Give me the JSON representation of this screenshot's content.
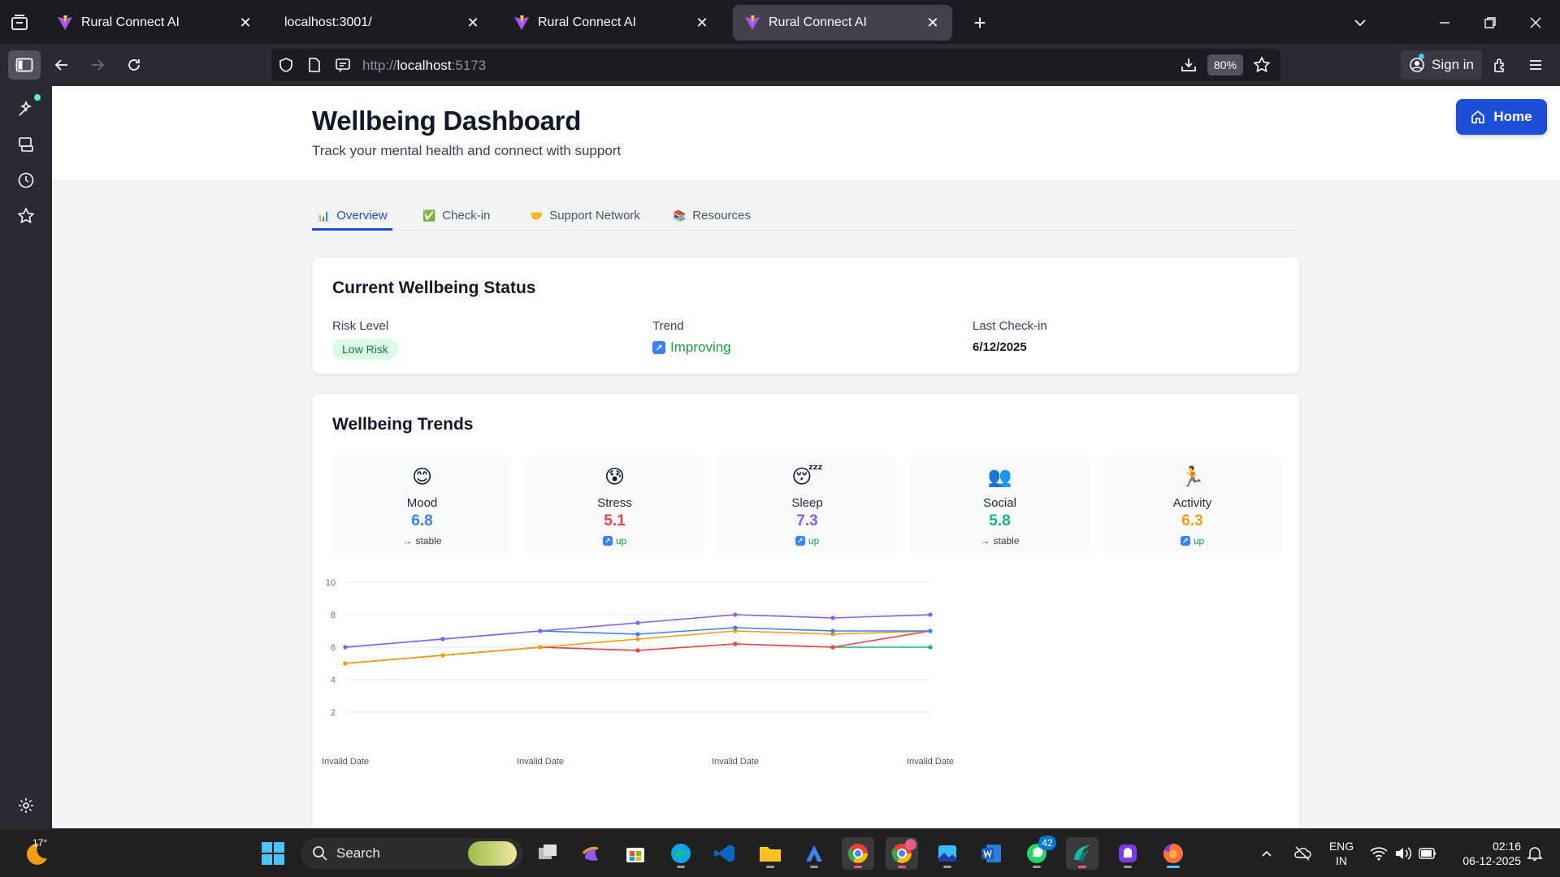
{
  "browser": {
    "tabs": [
      {
        "title": "Rural Connect AI",
        "active": false
      },
      {
        "title": "localhost:3001/",
        "active": false
      },
      {
        "title": "Rural Connect AI",
        "active": false
      },
      {
        "title": "Rural Connect AI",
        "active": true
      }
    ],
    "url_prefix": "http://",
    "url_host": "localhost",
    "url_suffix": ":5173",
    "zoom": "80%",
    "signin_label": "Sign in"
  },
  "page": {
    "title": "Wellbeing Dashboard",
    "subtitle": "Track your mental health and connect with support",
    "home_label": "Home",
    "tabs": [
      {
        "emoji": "📊",
        "label": "Overview",
        "active": true
      },
      {
        "emoji": "✅",
        "label": "Check-in",
        "active": false
      },
      {
        "emoji": "🤝",
        "label": "Support Network",
        "active": false
      },
      {
        "emoji": "📚",
        "label": "Resources",
        "active": false
      }
    ],
    "status": {
      "title": "Current Wellbeing Status",
      "risk_label": "Risk Level",
      "risk_value": "Low Risk",
      "trend_label": "Trend",
      "trend_icon": "↗",
      "trend_value": "Improving",
      "last_label": "Last Check-in",
      "last_value": "6/12/2025"
    },
    "trends": {
      "title": "Wellbeing Trends",
      "metrics": [
        {
          "emoji": "😊",
          "name": "Mood",
          "value": "6.8",
          "trend_icon": "→",
          "trend": "stable",
          "color": "#3b82f6"
        },
        {
          "emoji": "😰",
          "name": "Stress",
          "value": "5.1",
          "trend_icon": "↗",
          "trend": "up",
          "color": "#ef4444"
        },
        {
          "emoji": "😴",
          "name": "Sleep",
          "value": "7.3",
          "trend_icon": "↗",
          "trend": "up",
          "color": "#8b5cf6"
        },
        {
          "emoji": "👥",
          "name": "Social",
          "value": "5.8",
          "trend_icon": "→",
          "trend": "stable",
          "color": "#10b981"
        },
        {
          "emoji": "🏃",
          "name": "Activity",
          "value": "6.3",
          "trend_icon": "↗",
          "trend": "up",
          "color": "#f59e0b"
        }
      ]
    }
  },
  "chart_data": {
    "type": "line",
    "x": [
      "Invalid Date",
      "",
      "Invalid Date",
      "",
      "Invalid Date",
      "",
      "Invalid Date"
    ],
    "x_tick_labels": [
      "Invalid Date",
      "Invalid Date",
      "Invalid Date",
      "Invalid Date"
    ],
    "y_ticks": [
      2,
      4,
      6,
      8,
      10
    ],
    "ylim": [
      1,
      10
    ],
    "grid": true,
    "series": [
      {
        "color": "#8b5cf6",
        "values": [
          6.0,
          6.5,
          7.0,
          7.5,
          8.0,
          7.8,
          8.0
        ]
      },
      {
        "color": "#3b82f6",
        "values": [
          6.0,
          6.5,
          7.0,
          6.8,
          7.2,
          7.0,
          7.0
        ]
      },
      {
        "color": "#f59e0b",
        "values": [
          5.0,
          5.5,
          6.0,
          6.5,
          7.0,
          6.8,
          7.0
        ]
      },
      {
        "color": "#ef4444",
        "values": [
          5.0,
          5.5,
          6.0,
          5.8,
          6.2,
          6.0,
          7.0
        ]
      },
      {
        "color": "#10b981",
        "values": [
          5.0,
          5.5,
          6.0,
          5.8,
          6.2,
          6.0,
          6.0
        ]
      }
    ]
  },
  "taskbar": {
    "weather_temp": "17°",
    "search_label": "Search",
    "lang_line1": "ENG",
    "lang_line2": "IN",
    "time": "02:16",
    "date": "06-12-2025",
    "whatsapp_badge": "42"
  }
}
